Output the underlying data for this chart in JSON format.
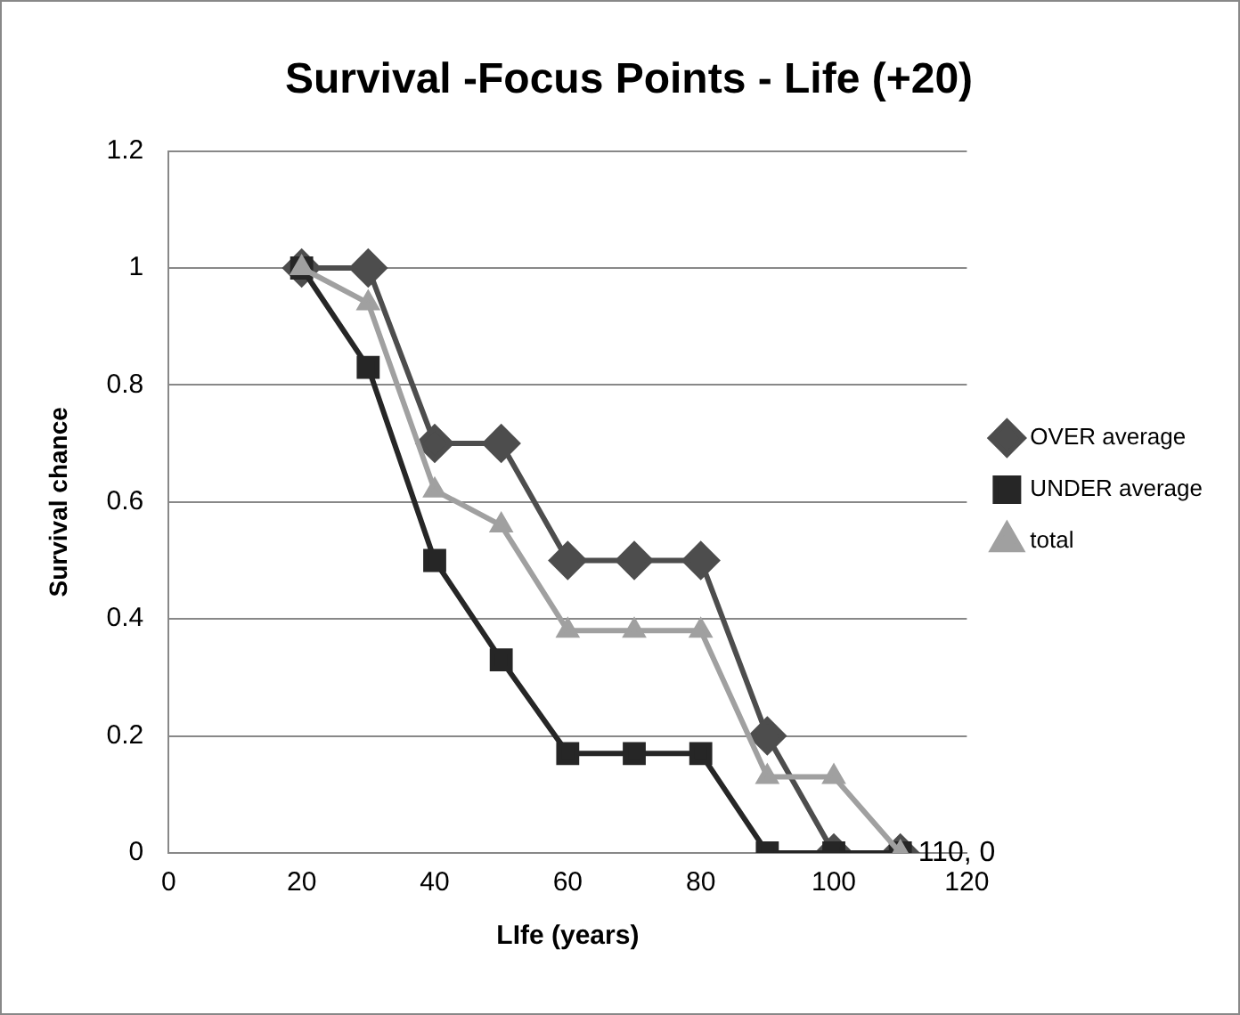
{
  "chart_data": {
    "type": "line",
    "title": "Survival -Focus Points - Life (+20)",
    "xlabel": "LIfe (years)",
    "ylabel": "Survival chance",
    "x": [
      20,
      30,
      40,
      50,
      60,
      70,
      80,
      90,
      100,
      110
    ],
    "xlim": [
      0,
      120
    ],
    "xticks": [
      0,
      20,
      40,
      60,
      80,
      100,
      120
    ],
    "ylim": [
      0,
      1.2
    ],
    "yticks": [
      0,
      0.2,
      0.4,
      0.6,
      0.8,
      1,
      1.2
    ],
    "grid": "y",
    "legend": "right",
    "annotations": [
      {
        "text": "110, 0",
        "x": 110,
        "y": 0
      }
    ],
    "series": [
      {
        "name": "OVER average",
        "color": "#4d4d4d",
        "marker": "diamond",
        "values": [
          1,
          1,
          0.7,
          0.7,
          0.5,
          0.5,
          0.5,
          0.2,
          0,
          0
        ]
      },
      {
        "name": "UNDER average",
        "color": "#262626",
        "marker": "square",
        "values": [
          1,
          0.83,
          0.5,
          0.33,
          0.17,
          0.17,
          0.17,
          0,
          0,
          0
        ]
      },
      {
        "name": "total",
        "color": "#a0a0a0",
        "marker": "triangle",
        "values": [
          1,
          0.94,
          0.62,
          0.56,
          0.38,
          0.38,
          0.38,
          0.13,
          0.13,
          0
        ]
      }
    ]
  }
}
